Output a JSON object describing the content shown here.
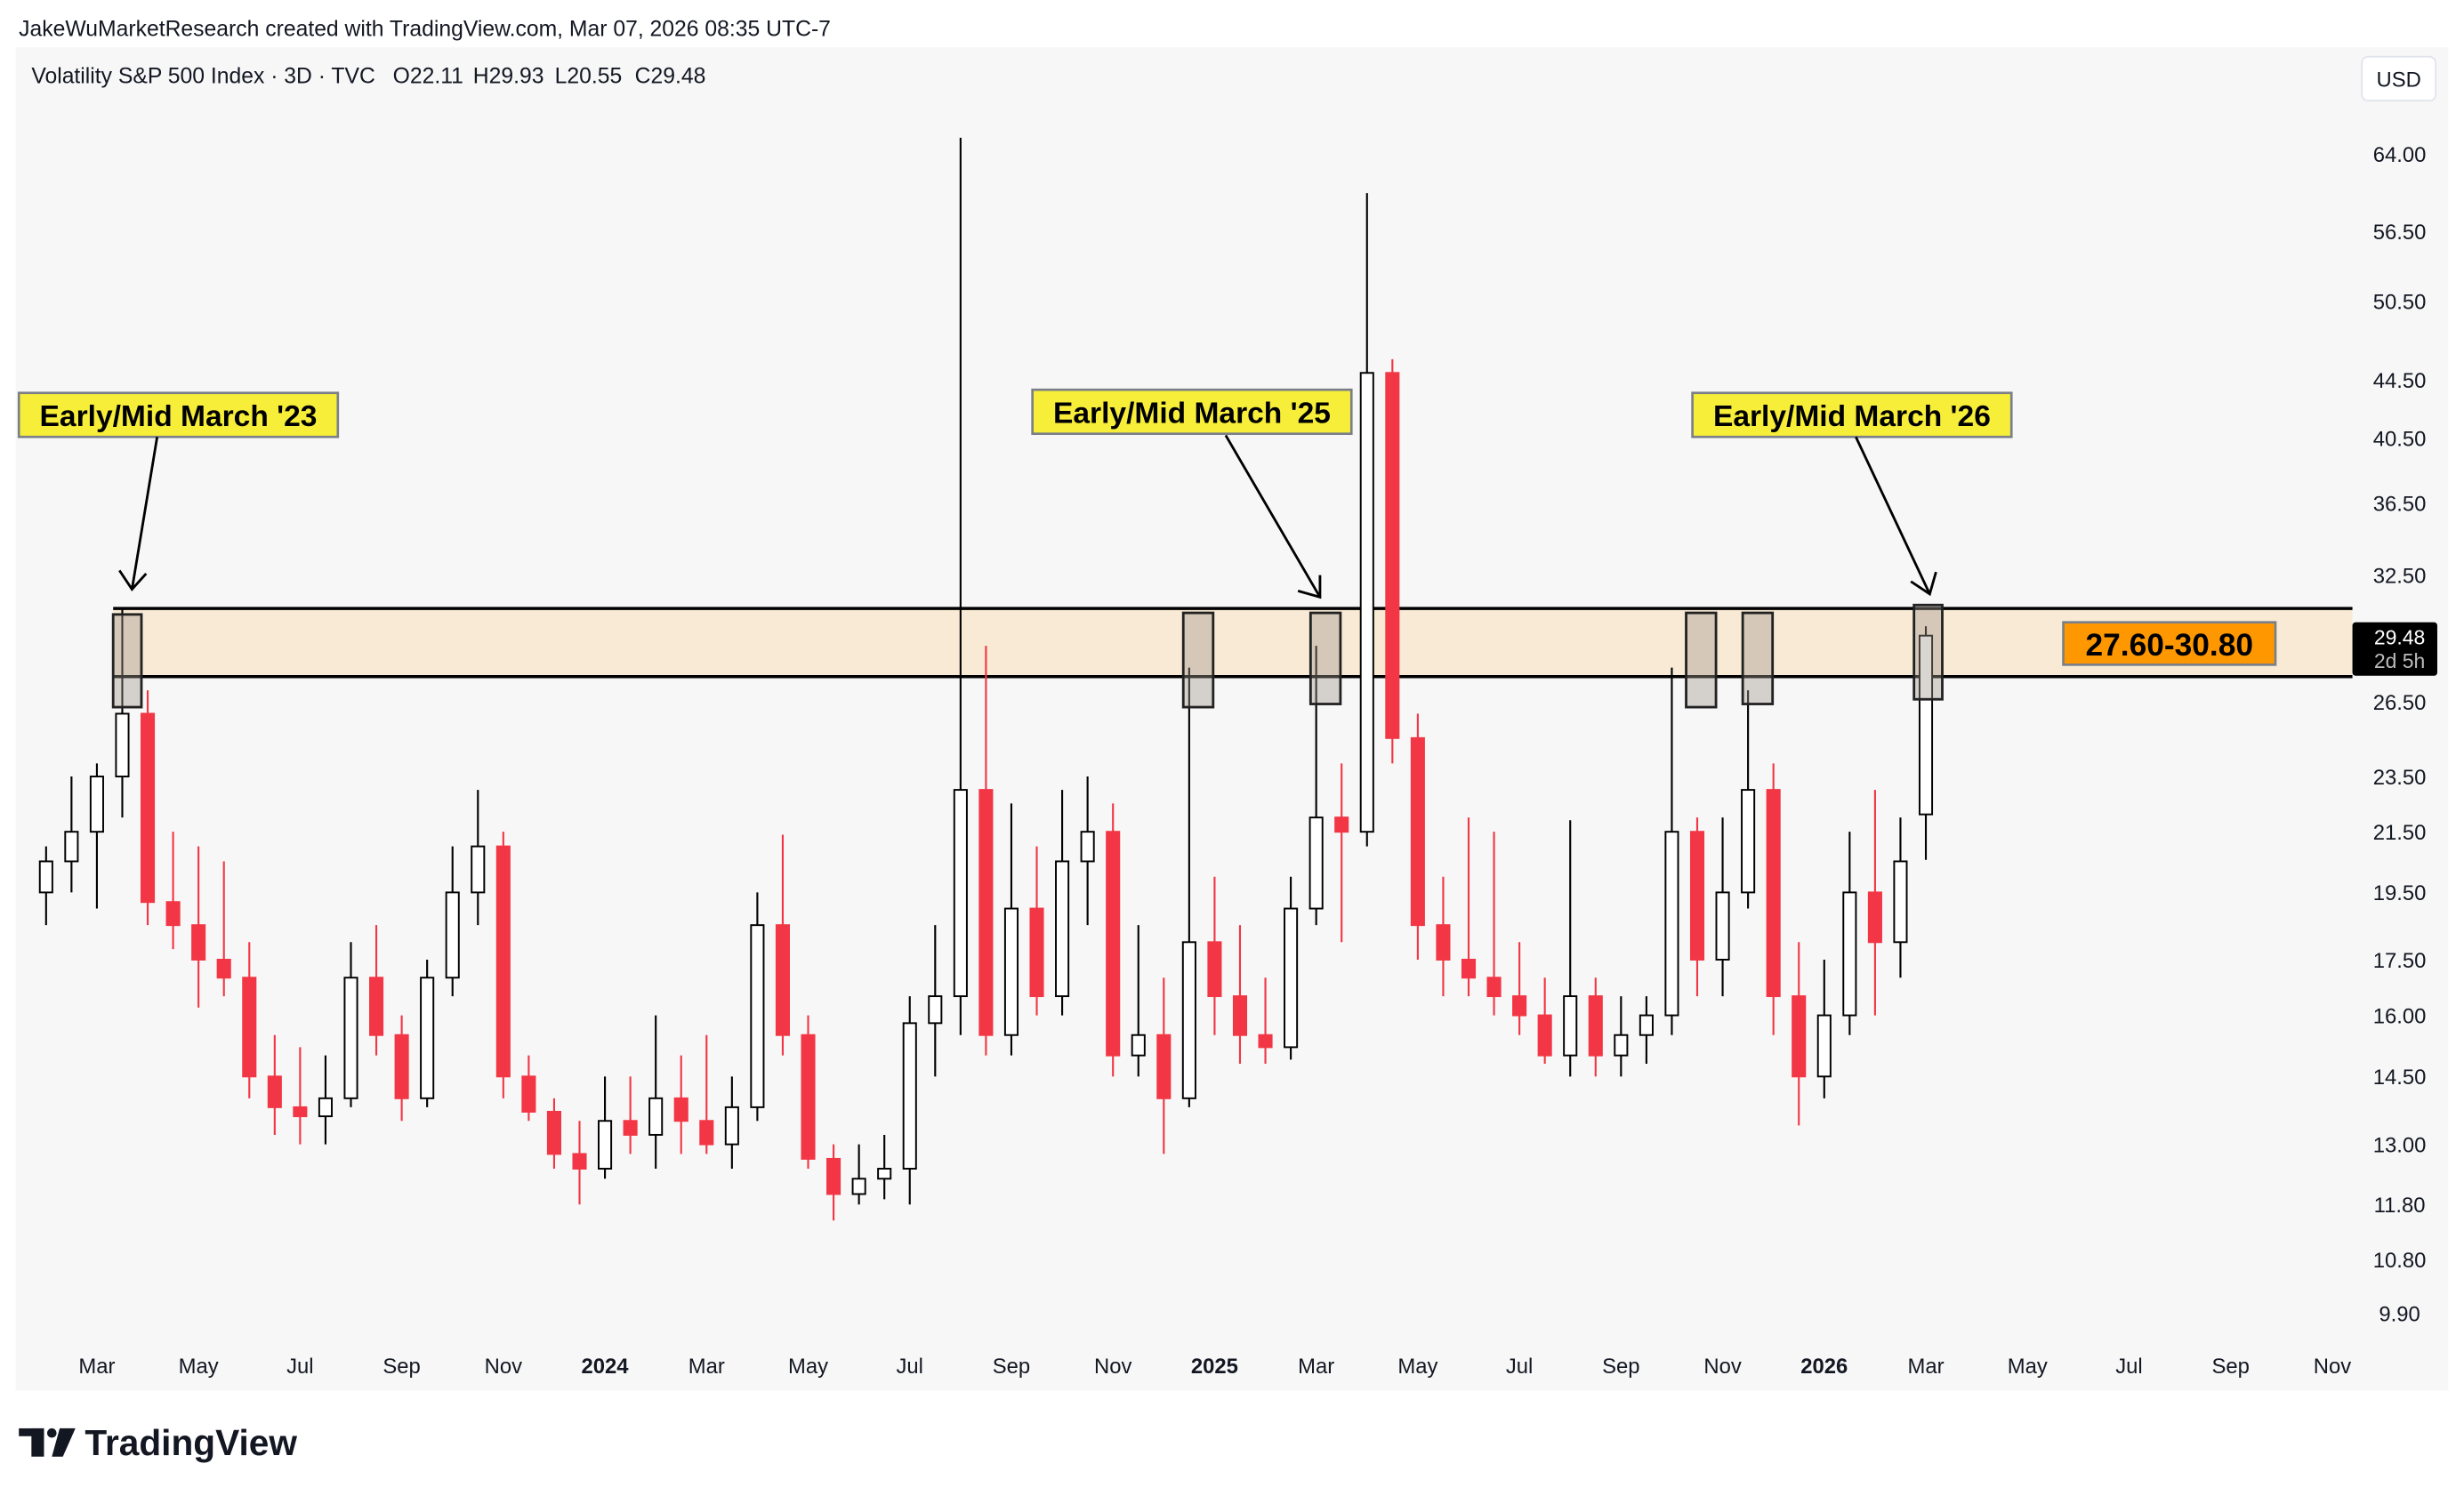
{
  "header": {
    "attribution": "JakeWuMarketResearch created with TradingView.com, Mar 07, 2026 08:35 UTC-7",
    "symbol_line": "Volatility S&P 500 Index · 3D · TVC",
    "open": "O22.11",
    "high": "H29.93",
    "low": "L20.55",
    "close": "C29.48"
  },
  "currency_button": "USD",
  "price_label": {
    "value": "29.48",
    "countdown": "2d 5h"
  },
  "zone_label": "27.60-30.80",
  "callouts": [
    "Early/Mid March '23",
    "Early/Mid March '25",
    "Early/Mid March '26"
  ],
  "logo_text": "TradingView",
  "colors": {
    "up": "#ffffff",
    "up_border": "#000000",
    "down": "#f23645",
    "zone": "#f8ead5",
    "callout": "#f7ee3a",
    "zone_label": "#ff9800",
    "panel": "#f7f7f7"
  },
  "chart_data": {
    "type": "candlestick",
    "title": "Volatility S&P 500 Index · 3D · TVC",
    "scale": "log",
    "ylim": [
      9.5,
      70
    ],
    "start_month_index": 1,
    "step_months": 0.5,
    "candles": [
      [
        19.5,
        21,
        18.5,
        20.5
      ],
      [
        20.5,
        23.5,
        19.5,
        21.5
      ],
      [
        21.5,
        24,
        19,
        23.5
      ],
      [
        23.5,
        30.8,
        22,
        26
      ],
      [
        26,
        27,
        18.5,
        19.2
      ],
      [
        19.2,
        21.5,
        17.8,
        18.5
      ],
      [
        18.5,
        21,
        16.2,
        17.5
      ],
      [
        17.5,
        20.5,
        16.5,
        17
      ],
      [
        17,
        18,
        14,
        14.5
      ],
      [
        14.5,
        15.5,
        13.2,
        13.8
      ],
      [
        13.8,
        15.2,
        13,
        13.6
      ],
      [
        13.6,
        15,
        13,
        14
      ],
      [
        14,
        18,
        13.8,
        17
      ],
      [
        17,
        18.5,
        15,
        15.5
      ],
      [
        15.5,
        16,
        13.5,
        14
      ],
      [
        14,
        17.5,
        13.8,
        17
      ],
      [
        17,
        21,
        16.5,
        19.5
      ],
      [
        19.5,
        23,
        18.5,
        21
      ],
      [
        21,
        21.5,
        14,
        14.5
      ],
      [
        14.5,
        15,
        13.5,
        13.7
      ],
      [
        13.7,
        14,
        12.5,
        12.8
      ],
      [
        12.8,
        13.5,
        11.8,
        12.5
      ],
      [
        12.5,
        14.5,
        12.3,
        13.5
      ],
      [
        13.5,
        14.5,
        12.8,
        13.2
      ],
      [
        13.2,
        16,
        12.5,
        14
      ],
      [
        14,
        15,
        12.8,
        13.5
      ],
      [
        13.5,
        15.5,
        12.8,
        13
      ],
      [
        13,
        14.5,
        12.5,
        13.8
      ],
      [
        13.8,
        19.5,
        13.5,
        18.5
      ],
      [
        18.5,
        21.4,
        15,
        15.5
      ],
      [
        15.5,
        16,
        12.5,
        12.7
      ],
      [
        12.7,
        13,
        11.5,
        12
      ],
      [
        12,
        13,
        11.8,
        12.3
      ],
      [
        12.3,
        13.2,
        11.9,
        12.5
      ],
      [
        12.5,
        16.5,
        11.8,
        15.8
      ],
      [
        15.8,
        18.5,
        14.5,
        16.5
      ],
      [
        16.5,
        65.7,
        15.5,
        23
      ],
      [
        23,
        29,
        15,
        15.5
      ],
      [
        15.5,
        22.5,
        15,
        19
      ],
      [
        19,
        21,
        16,
        16.5
      ],
      [
        16.5,
        23,
        16,
        20.5
      ],
      [
        20.5,
        23.5,
        18.5,
        21.5
      ],
      [
        21.5,
        22.5,
        14.5,
        15
      ],
      [
        15,
        18.5,
        14.5,
        15.5
      ],
      [
        15.5,
        17,
        12.8,
        14
      ],
      [
        14,
        28,
        13.8,
        18
      ],
      [
        18,
        20,
        15.5,
        16.5
      ],
      [
        16.5,
        18.5,
        14.8,
        15.5
      ],
      [
        15.5,
        17,
        14.8,
        15.2
      ],
      [
        15.2,
        20,
        14.9,
        19
      ],
      [
        19,
        29,
        18.5,
        22
      ],
      [
        22,
        24,
        18,
        21.5
      ],
      [
        21.5,
        60.1,
        21,
        45
      ],
      [
        45,
        46,
        24,
        25
      ],
      [
        25,
        26,
        17.5,
        18.5
      ],
      [
        18.5,
        20,
        16.5,
        17.5
      ],
      [
        17.5,
        22,
        16.5,
        17
      ],
      [
        17,
        21.5,
        16,
        16.5
      ],
      [
        16.5,
        18,
        15.5,
        16
      ],
      [
        16,
        17,
        14.8,
        15
      ],
      [
        15,
        21.9,
        14.5,
        16.5
      ],
      [
        16.5,
        17,
        14.5,
        15
      ],
      [
        15,
        16.5,
        14.5,
        15.5
      ],
      [
        15.5,
        16.5,
        14.8,
        16
      ],
      [
        16,
        28,
        15.5,
        21.5
      ],
      [
        21.5,
        22,
        16.5,
        17.5
      ],
      [
        17.5,
        22,
        16.5,
        19.5
      ],
      [
        19.5,
        27,
        19,
        23
      ],
      [
        23,
        24,
        15.5,
        16.5
      ],
      [
        16.5,
        18,
        13.4,
        14.5
      ],
      [
        14.5,
        17.5,
        14,
        16
      ],
      [
        16,
        21.5,
        15.5,
        19.5
      ],
      [
        19.5,
        23,
        16,
        18
      ],
      [
        18,
        22,
        17,
        20.5
      ],
      [
        22.11,
        29.93,
        20.55,
        29.48
      ]
    ],
    "zone": [
      27.6,
      30.8
    ],
    "y_ticks": [
      "64.00",
      "56.50",
      "50.50",
      "44.50",
      "40.50",
      "36.50",
      "32.50",
      "26.50",
      "23.50",
      "21.50",
      "19.50",
      "17.50",
      "16.00",
      "14.50",
      "13.00",
      "11.80",
      "10.80",
      "9.90"
    ],
    "x_ticks": [
      {
        "label": "Mar",
        "month_index": 2,
        "bold": false
      },
      {
        "label": "May",
        "month_index": 4,
        "bold": false
      },
      {
        "label": "Jul",
        "month_index": 6,
        "bold": false
      },
      {
        "label": "Sep",
        "month_index": 8,
        "bold": false
      },
      {
        "label": "Nov",
        "month_index": 10,
        "bold": false
      },
      {
        "label": "2024",
        "month_index": 12,
        "bold": true
      },
      {
        "label": "Mar",
        "month_index": 14,
        "bold": false
      },
      {
        "label": "May",
        "month_index": 16,
        "bold": false
      },
      {
        "label": "Jul",
        "month_index": 18,
        "bold": false
      },
      {
        "label": "Sep",
        "month_index": 20,
        "bold": false
      },
      {
        "label": "Nov",
        "month_index": 22,
        "bold": false
      },
      {
        "label": "2025",
        "month_index": 24,
        "bold": true
      },
      {
        "label": "Mar",
        "month_index": 26,
        "bold": false
      },
      {
        "label": "May",
        "month_index": 28,
        "bold": false
      },
      {
        "label": "Jul",
        "month_index": 30,
        "bold": false
      },
      {
        "label": "Sep",
        "month_index": 32,
        "bold": false
      },
      {
        "label": "Nov",
        "month_index": 34,
        "bold": false
      },
      {
        "label": "2026",
        "month_index": 36,
        "bold": true
      },
      {
        "label": "Mar",
        "month_index": 38,
        "bold": false
      },
      {
        "label": "May",
        "month_index": 40,
        "bold": false
      },
      {
        "label": "Jul",
        "month_index": 42,
        "bold": false
      },
      {
        "label": "Sep",
        "month_index": 44,
        "bold": false
      },
      {
        "label": "Nov",
        "month_index": 46,
        "bold": false
      }
    ]
  }
}
